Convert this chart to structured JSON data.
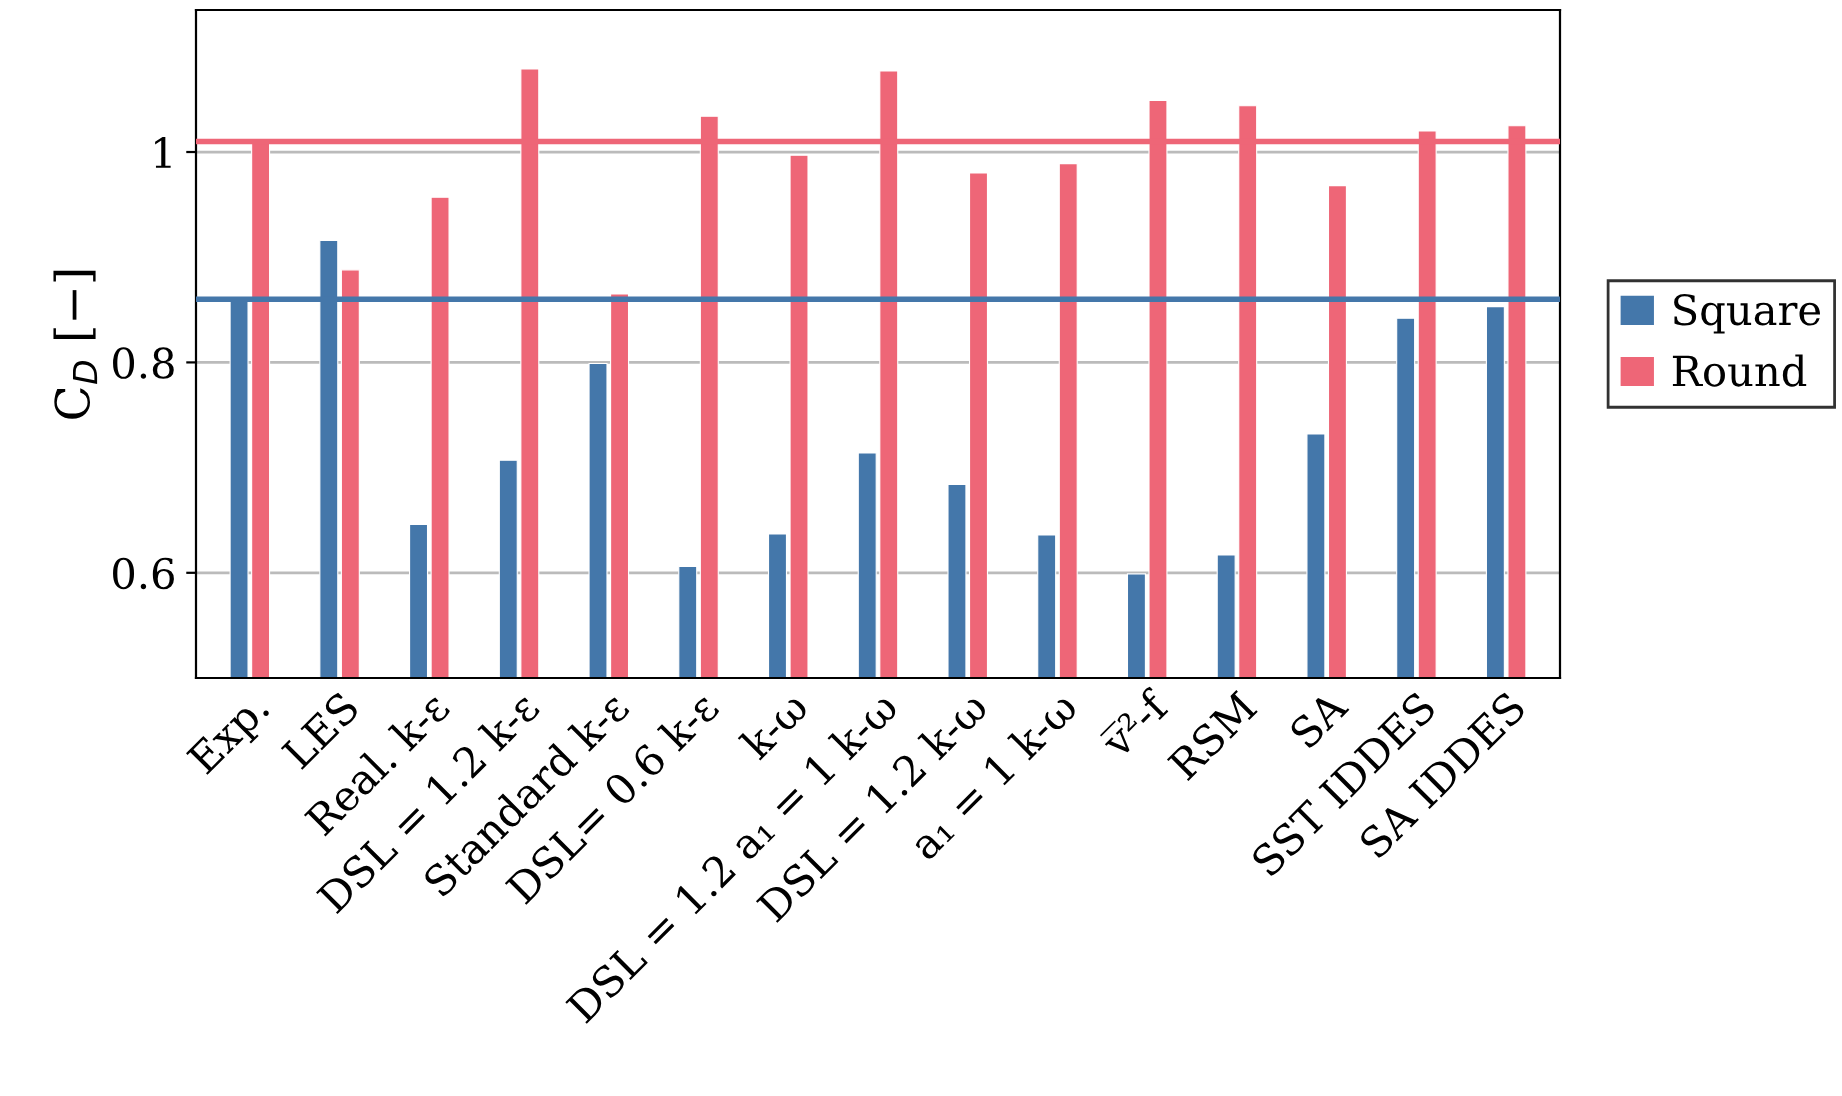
{
  "chart_data": {
    "type": "bar",
    "ylabel": "C$_{D}$ [−]",
    "categories": [
      "Exp.",
      "LES",
      "Real. k-ε",
      "DSL = 1.2 k-ε",
      "Standard k-ε",
      "DSL= 0.6 k-ε",
      "k-ω",
      "DSL = 1.2 a₁ = 1 k-ω",
      "DSL = 1.2 k-ω",
      "a₁ = 1 k-ω",
      "v̅²-f",
      "RSM",
      "SA",
      "SST IDDES",
      "SA IDDES"
    ],
    "series": [
      {
        "name": "Square",
        "color": "#4477aa",
        "values": [
          0.86,
          0.916,
          0.646,
          0.707,
          0.799,
          0.606,
          0.637,
          0.714,
          0.684,
          0.636,
          0.599,
          0.617,
          0.732,
          0.842,
          0.853
        ]
      },
      {
        "name": "Round",
        "color": "#ee6677",
        "values": [
          1.01,
          0.888,
          0.957,
          1.079,
          0.865,
          1.034,
          0.997,
          1.077,
          0.98,
          0.989,
          1.049,
          1.044,
          0.968,
          1.02,
          1.025
        ]
      }
    ],
    "ylim": [
      0.5,
      1.135
    ],
    "yticks": [
      0.6,
      0.8,
      {
        "value": 1,
        "label": "1"
      }
    ],
    "ref_lines": [
      {
        "axis": "y",
        "value": 0.86,
        "color": "#4477aa"
      },
      {
        "axis": "y",
        "value": 1.01,
        "color": "#ee6677"
      }
    ],
    "grid": "y",
    "legend": "right"
  }
}
